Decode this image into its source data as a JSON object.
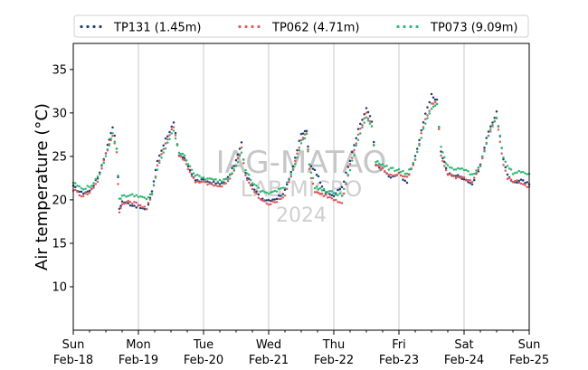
{
  "chart_data": {
    "type": "scatter",
    "title": "",
    "xlabel": "",
    "ylabel": "Air temperature (°C)",
    "xlim": [
      "2024-02-18T00:00",
      "2024-02-25T00:00"
    ],
    "ylim": [
      5,
      38
    ],
    "yticks": [
      10,
      15,
      20,
      25,
      30,
      35
    ],
    "xticks": [
      {
        "day": "Sun",
        "date": "Feb-18"
      },
      {
        "day": "Mon",
        "date": "Feb-19"
      },
      {
        "day": "Tue",
        "date": "Feb-20"
      },
      {
        "day": "Wed",
        "date": "Feb-21"
      },
      {
        "day": "Thu",
        "date": "Feb-22"
      },
      {
        "day": "Fri",
        "date": "Feb-23"
      },
      {
        "day": "Sat",
        "date": "Feb-24"
      },
      {
        "day": "Sun",
        "date": "Feb-25"
      }
    ],
    "grid": "vertical",
    "legend": "top",
    "watermark": {
      "line1": "IAG-MATAO",
      "line2": "LAB MICRO",
      "line3": "2024"
    },
    "series": [
      {
        "name": "TP131 (1.45m)",
        "color": "#1f3d7a",
        "x": [
          "2024-02-18T00:00",
          "2024-02-18T03:00",
          "2024-02-18T06:00",
          "2024-02-18T09:00",
          "2024-02-18T12:00",
          "2024-02-18T14:30",
          "2024-02-18T16:00",
          "2024-02-18T17:00",
          "2024-02-18T18:00",
          "2024-02-18T21:00",
          "2024-02-19T00:00",
          "2024-02-19T03:00",
          "2024-02-19T05:00",
          "2024-02-19T07:00",
          "2024-02-19T10:00",
          "2024-02-19T13:00",
          "2024-02-19T15:00",
          "2024-02-19T17:00",
          "2024-02-19T21:00",
          "2024-02-20T00:00",
          "2024-02-20T03:00",
          "2024-02-20T06:00",
          "2024-02-20T09:00",
          "2024-02-20T12:00",
          "2024-02-20T14:00",
          "2024-02-20T15:30",
          "2024-02-20T18:00",
          "2024-02-20T21:00",
          "2024-02-21T00:00",
          "2024-02-21T03:00",
          "2024-02-21T06:00",
          "2024-02-21T09:00",
          "2024-02-21T12:00",
          "2024-02-21T14:00",
          "2024-02-21T15:00",
          "2024-02-21T17:00",
          "2024-02-21T21:00",
          "2024-02-22T00:00",
          "2024-02-22T03:00",
          "2024-02-22T06:00",
          "2024-02-22T09:00",
          "2024-02-22T12:00",
          "2024-02-22T14:00",
          "2024-02-22T15:30",
          "2024-02-22T18:00",
          "2024-02-22T21:00",
          "2024-02-23T00:00",
          "2024-02-23T03:00",
          "2024-02-23T06:00",
          "2024-02-23T09:00",
          "2024-02-23T12:00",
          "2024-02-23T14:00",
          "2024-02-23T15:30",
          "2024-02-23T18:00",
          "2024-02-23T21:00",
          "2024-02-24T00:00",
          "2024-02-24T03:00",
          "2024-02-24T06:00",
          "2024-02-24T09:00",
          "2024-02-24T12:00",
          "2024-02-24T14:30",
          "2024-02-24T16:00",
          "2024-02-24T18:00",
          "2024-02-24T21:00",
          "2024-02-25T00:00"
        ],
        "y": [
          21.5,
          20.8,
          21.0,
          22.5,
          25.5,
          28.5,
          26.0,
          19.0,
          19.8,
          19.5,
          19.2,
          18.8,
          21.0,
          24.5,
          27.0,
          28.8,
          25.0,
          24.8,
          22.2,
          22.2,
          22.0,
          21.8,
          22.5,
          24.5,
          26.5,
          23.0,
          21.5,
          20.2,
          20.0,
          20.2,
          21.0,
          24.0,
          27.5,
          28.0,
          24.0,
          23.5,
          20.8,
          20.5,
          21.5,
          24.5,
          28.0,
          30.5,
          29.0,
          24.0,
          23.5,
          22.5,
          23.0,
          22.0,
          25.0,
          29.0,
          32.0,
          31.5,
          25.5,
          23.0,
          22.8,
          22.5,
          21.8,
          24.0,
          28.0,
          30.0,
          24.5,
          23.0,
          22.0,
          22.2,
          21.8
        ]
      },
      {
        "name": "TP062 (4.71m)",
        "color": "#e05a5a",
        "x": [
          "2024-02-18T00:00",
          "2024-02-18T03:00",
          "2024-02-18T06:00",
          "2024-02-18T09:00",
          "2024-02-18T12:00",
          "2024-02-18T14:30",
          "2024-02-18T16:00",
          "2024-02-18T17:00",
          "2024-02-18T18:00",
          "2024-02-18T21:00",
          "2024-02-19T00:00",
          "2024-02-19T03:00",
          "2024-02-19T05:00",
          "2024-02-19T07:00",
          "2024-02-19T10:00",
          "2024-02-19T13:00",
          "2024-02-19T15:00",
          "2024-02-19T17:00",
          "2024-02-19T21:00",
          "2024-02-20T00:00",
          "2024-02-20T03:00",
          "2024-02-20T06:00",
          "2024-02-20T09:00",
          "2024-02-20T12:00",
          "2024-02-20T14:00",
          "2024-02-20T15:30",
          "2024-02-20T18:00",
          "2024-02-20T21:00",
          "2024-02-21T00:00",
          "2024-02-21T03:00",
          "2024-02-21T06:00",
          "2024-02-21T09:00",
          "2024-02-21T12:00",
          "2024-02-21T14:00",
          "2024-02-21T15:00",
          "2024-02-21T17:00",
          "2024-02-21T21:00",
          "2024-02-22T00:00",
          "2024-02-22T03:00",
          "2024-02-22T06:00",
          "2024-02-22T09:00",
          "2024-02-22T12:00",
          "2024-02-22T14:00",
          "2024-02-22T15:30",
          "2024-02-22T18:00",
          "2024-02-22T21:00",
          "2024-02-23T00:00",
          "2024-02-23T03:00",
          "2024-02-23T06:00",
          "2024-02-23T09:00",
          "2024-02-23T12:00",
          "2024-02-23T14:00",
          "2024-02-23T15:30",
          "2024-02-23T18:00",
          "2024-02-23T21:00",
          "2024-02-24T00:00",
          "2024-02-24T03:00",
          "2024-02-24T06:00",
          "2024-02-24T09:00",
          "2024-02-24T12:00",
          "2024-02-24T14:30",
          "2024-02-24T16:00",
          "2024-02-24T18:00",
          "2024-02-24T21:00",
          "2024-02-25T00:00"
        ],
        "y": [
          21.2,
          20.5,
          20.8,
          22.2,
          25.2,
          27.5,
          25.5,
          18.5,
          19.5,
          19.8,
          19.5,
          19.0,
          20.5,
          24.0,
          26.5,
          28.5,
          25.2,
          24.5,
          22.0,
          22.0,
          21.8,
          21.5,
          22.0,
          24.0,
          26.0,
          22.8,
          21.2,
          20.0,
          19.5,
          19.8,
          20.5,
          23.5,
          27.0,
          27.8,
          23.5,
          21.0,
          20.5,
          20.0,
          19.5,
          24.0,
          27.5,
          30.0,
          28.5,
          24.0,
          23.5,
          22.8,
          23.0,
          22.5,
          24.5,
          28.5,
          31.0,
          31.2,
          25.0,
          23.0,
          22.5,
          22.5,
          22.0,
          23.8,
          27.5,
          29.5,
          24.0,
          22.5,
          22.2,
          22.0,
          21.5
        ]
      },
      {
        "name": "TP073 (9.09m)",
        "color": "#2eb872",
        "x": [
          "2024-02-18T00:00",
          "2024-02-18T03:00",
          "2024-02-18T06:00",
          "2024-02-18T09:00",
          "2024-02-18T12:00",
          "2024-02-18T14:30",
          "2024-02-18T16:00",
          "2024-02-18T17:00",
          "2024-02-18T18:00",
          "2024-02-18T21:00",
          "2024-02-19T00:00",
          "2024-02-19T03:00",
          "2024-02-19T05:00",
          "2024-02-19T07:00",
          "2024-02-19T10:00",
          "2024-02-19T13:00",
          "2024-02-19T15:00",
          "2024-02-19T17:00",
          "2024-02-19T21:00",
          "2024-02-20T00:00",
          "2024-02-20T03:00",
          "2024-02-20T06:00",
          "2024-02-20T09:00",
          "2024-02-20T12:00",
          "2024-02-20T14:00",
          "2024-02-20T15:30",
          "2024-02-20T18:00",
          "2024-02-20T21:00",
          "2024-02-21T00:00",
          "2024-02-21T03:00",
          "2024-02-21T06:00",
          "2024-02-21T09:00",
          "2024-02-21T12:00",
          "2024-02-21T14:00",
          "2024-02-21T15:00",
          "2024-02-21T17:00",
          "2024-02-21T21:00",
          "2024-02-22T00:00",
          "2024-02-22T03:00",
          "2024-02-22T06:00",
          "2024-02-22T09:00",
          "2024-02-22T12:00",
          "2024-02-22T14:00",
          "2024-02-22T15:30",
          "2024-02-22T18:00",
          "2024-02-22T21:00",
          "2024-02-23T00:00",
          "2024-02-23T03:00",
          "2024-02-23T06:00",
          "2024-02-23T09:00",
          "2024-02-23T12:00",
          "2024-02-23T14:00",
          "2024-02-23T15:30",
          "2024-02-23T18:00",
          "2024-02-23T21:00",
          "2024-02-24T00:00",
          "2024-02-24T03:00",
          "2024-02-24T06:00",
          "2024-02-24T09:00",
          "2024-02-24T12:00",
          "2024-02-24T14:30",
          "2024-02-24T16:00",
          "2024-02-24T18:00",
          "2024-02-24T21:00",
          "2024-02-25T00:00"
        ],
        "y": [
          22.0,
          21.3,
          21.5,
          22.5,
          25.0,
          27.8,
          25.8,
          20.0,
          20.5,
          20.5,
          20.5,
          20.0,
          20.8,
          23.5,
          26.0,
          28.0,
          25.5,
          25.0,
          22.8,
          22.5,
          22.3,
          22.2,
          22.5,
          24.0,
          25.5,
          23.5,
          22.0,
          21.0,
          20.8,
          21.0,
          21.5,
          23.5,
          26.5,
          27.5,
          24.0,
          21.5,
          21.0,
          20.8,
          20.5,
          23.5,
          27.0,
          29.5,
          28.5,
          24.5,
          24.0,
          23.5,
          23.5,
          23.0,
          24.5,
          28.0,
          30.5,
          31.0,
          26.0,
          23.8,
          23.5,
          23.5,
          22.8,
          24.0,
          27.5,
          29.5,
          25.0,
          24.0,
          23.0,
          23.2,
          23.0
        ]
      }
    ]
  }
}
